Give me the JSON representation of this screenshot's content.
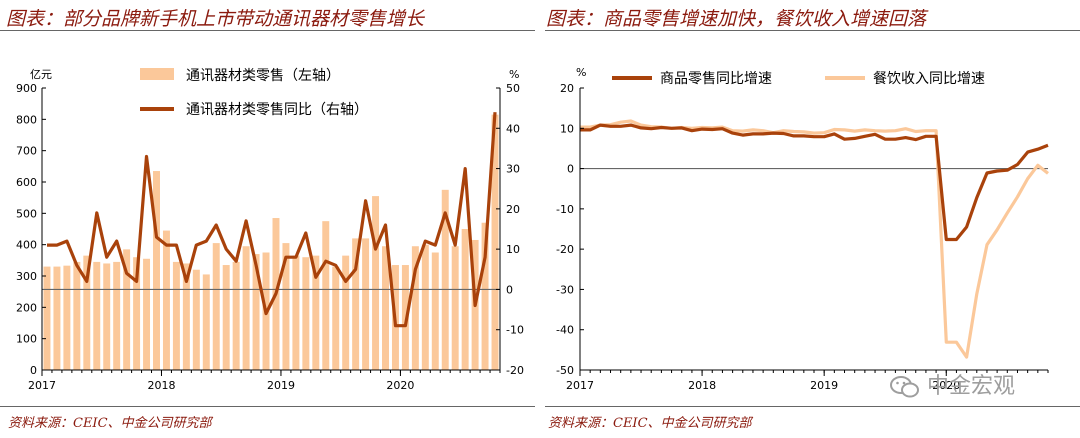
{
  "left": {
    "title": "图表：部分品牌新手机上市带动通讯器材零售增长",
    "source": "资料来源：CEIC、中金公司研究部",
    "chart_data": {
      "type": "bar+line",
      "y_left_unit": "亿元",
      "y_right_unit": "%",
      "ylim_left": [
        0,
        900
      ],
      "ylim_right": [
        -20,
        50
      ],
      "y_left_ticks": [
        0,
        100,
        200,
        300,
        400,
        500,
        600,
        700,
        800,
        900
      ],
      "y_right_ticks": [
        -20,
        -10,
        0,
        10,
        20,
        30,
        40,
        50
      ],
      "x_ticks": [
        "2017",
        "2018",
        "2019",
        "2020"
      ],
      "x_tick_index": [
        0,
        12,
        24,
        36
      ],
      "grid": false,
      "legend_position": "top",
      "series": [
        {
          "name": "通讯器材类零售（左轴）",
          "axis": "left",
          "kind": "bar",
          "values": [
            330,
            330,
            333,
            345,
            365,
            345,
            340,
            345,
            385,
            360,
            355,
            635,
            445,
            345,
            340,
            320,
            305,
            405,
            335,
            345,
            395,
            370,
            375,
            485,
            405,
            365,
            360,
            365,
            475,
            330,
            365,
            420,
            420,
            555,
            395,
            335,
            335,
            395,
            400,
            375,
            575,
            395,
            450,
            415,
            470,
            815
          ]
        },
        {
          "name": "通讯器材类零售同比（右轴）",
          "axis": "right",
          "kind": "line",
          "values": [
            11,
            11,
            12,
            6,
            2,
            19,
            8,
            12,
            4,
            2,
            33,
            13,
            11,
            11,
            2,
            11,
            12,
            16,
            10,
            7,
            17,
            6,
            -6,
            -1,
            8,
            8,
            14,
            3,
            7,
            6,
            2,
            5,
            22,
            10,
            16,
            -9,
            -9,
            5,
            12,
            11,
            19,
            11,
            30,
            -4,
            8,
            44
          ]
        }
      ]
    }
  },
  "right": {
    "title": "图表：商品零售增速加快，餐饮收入增速回落",
    "source": "资料来源：CEIC、中金公司研究部",
    "chart_data": {
      "type": "line",
      "y_unit": "%",
      "ylim": [
        -50,
        20
      ],
      "y_ticks": [
        -50,
        -40,
        -30,
        -20,
        -10,
        0,
        10,
        20
      ],
      "x_ticks": [
        "2017",
        "2018",
        "2019",
        "2020"
      ],
      "x_tick_index": [
        0,
        12,
        24,
        36
      ],
      "grid": false,
      "legend_position": "top",
      "series": [
        {
          "name": "商品零售同比增速",
          "values": [
            9.6,
            9.6,
            10.8,
            10.5,
            10.5,
            10.8,
            10.1,
            9.9,
            10.2,
            10,
            10.1,
            9.4,
            9.8,
            9.7,
            9.9,
            8.8,
            8.3,
            8.6,
            8.6,
            8.8,
            8.7,
            8.1,
            8.1,
            7.9,
            7.9,
            8.6,
            7.3,
            7.5,
            8,
            8.5,
            7.3,
            7.3,
            7.7,
            7.2,
            8,
            8,
            -17.6,
            -17.6,
            -14.5,
            -7.2,
            -1.1,
            -0.6,
            -0.4,
            1,
            4.1,
            4.8,
            5.8
          ]
        },
        {
          "name": "餐饮收入同比增速",
          "values": [
            10.3,
            10.3,
            10.8,
            10.9,
            11.5,
            11.8,
            10.8,
            10.4,
            10.3,
            10,
            10.2,
            10,
            10.2,
            10.1,
            10.3,
            9.4,
            9.3,
            9.6,
            9.4,
            8.9,
            9.4,
            9.2,
            9.1,
            8.8,
            8.9,
            9.7,
            9.6,
            9.3,
            9.6,
            9.4,
            9.3,
            9.4,
            9.9,
            9.2,
            9.4,
            9.4,
            -43.1,
            -43.1,
            -46.8,
            -31.1,
            -18.9,
            -15.2,
            -11,
            -7,
            -2.5,
            0.8,
            -1.2
          ]
        }
      ]
    }
  },
  "watermark": {
    "icon": "wechat-icon",
    "text": "中金宏观"
  },
  "colors": {
    "title": "#8b1a0e",
    "bar": "#fbc89a",
    "line_dark": "#a9420b",
    "line_light": "#fbc89a",
    "axis": "#000000",
    "zero_line": "#666666"
  }
}
